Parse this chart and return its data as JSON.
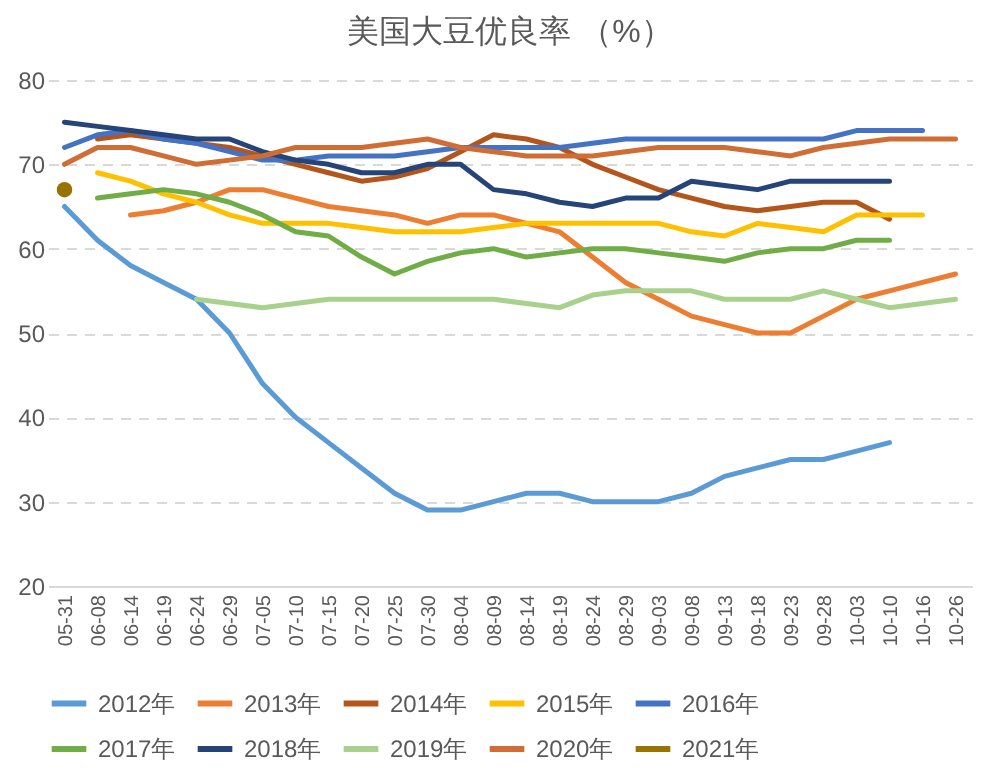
{
  "chart_data": {
    "type": "line",
    "title": "美国大豆优良率 （%）",
    "categories": [
      "05-31",
      "06-08",
      "06-14",
      "06-19",
      "06-24",
      "06-29",
      "07-05",
      "07-10",
      "07-15",
      "07-20",
      "07-25",
      "07-30",
      "08-04",
      "08-09",
      "08-14",
      "08-19",
      "08-24",
      "08-29",
      "09-03",
      "09-08",
      "09-13",
      "09-18",
      "09-23",
      "09-28",
      "10-03",
      "10-10",
      "10-16",
      "10-26"
    ],
    "ylim": [
      20,
      80
    ],
    "yticks": [
      20,
      30,
      40,
      50,
      60,
      70,
      80
    ],
    "grid": "y",
    "legend": "bottom",
    "marker": "none",
    "series": [
      {
        "name": "2012年",
        "color": "#5b9bd5",
        "values": [
          65,
          61,
          58,
          56,
          54,
          50,
          44,
          40,
          37,
          34,
          31,
          29,
          29,
          30,
          31,
          31,
          30,
          30,
          30,
          31,
          33,
          34,
          35,
          35,
          36,
          37,
          null,
          null
        ]
      },
      {
        "name": "2013年",
        "color": "#ed7d31",
        "values": [
          null,
          null,
          64,
          64.5,
          65.5,
          67,
          67,
          66,
          65,
          64.5,
          64,
          63,
          64,
          64,
          63,
          62,
          59,
          56,
          54,
          52,
          51,
          50,
          50,
          52,
          54,
          55,
          56,
          57
        ]
      },
      {
        "name": "2014年",
        "color": "#b4561c",
        "values": [
          null,
          73,
          73.5,
          73,
          72.5,
          72,
          71,
          70,
          69,
          68,
          68.5,
          69.5,
          71.5,
          73.5,
          73,
          72,
          70,
          68.5,
          67,
          66,
          65,
          64.5,
          65,
          65.5,
          65.5,
          63.5,
          null,
          null
        ]
      },
      {
        "name": "2015年",
        "color": "#ffc000",
        "values": [
          null,
          69,
          68,
          66.5,
          65.5,
          64,
          63,
          63,
          63,
          62.5,
          62,
          62,
          62,
          62.5,
          63,
          63,
          63,
          63,
          63,
          62,
          61.5,
          63,
          62.5,
          62,
          64,
          64,
          64,
          null
        ]
      },
      {
        "name": "2016年",
        "color": "#4472c4",
        "values": [
          72,
          73.5,
          74,
          73,
          72.5,
          71.5,
          70.5,
          70.5,
          71,
          71,
          71,
          71.5,
          72,
          72,
          72,
          72,
          72.5,
          73,
          73,
          73,
          73,
          73,
          73,
          73,
          74,
          74,
          74,
          null
        ]
      },
      {
        "name": "2017年",
        "color": "#70ad47",
        "values": [
          null,
          66,
          66.5,
          67,
          66.5,
          65.5,
          64,
          62,
          61.5,
          59,
          57,
          58.5,
          59.5,
          60,
          59,
          59.5,
          60,
          60,
          59.5,
          59,
          58.5,
          59.5,
          60,
          60,
          61,
          61,
          null,
          null
        ]
      },
      {
        "name": "2018年",
        "color": "#264478",
        "values": [
          75,
          74.5,
          74,
          73.5,
          73,
          73,
          71.5,
          70.5,
          70,
          69,
          69,
          70,
          70,
          67,
          66.5,
          65.5,
          65,
          66,
          66,
          68,
          67.5,
          67,
          68,
          68,
          68,
          68,
          null,
          null
        ]
      },
      {
        "name": "2019年",
        "color": "#a9d18e",
        "values": [
          null,
          null,
          null,
          null,
          54,
          53.5,
          53,
          53.5,
          54,
          54,
          54,
          54,
          54,
          54,
          53.5,
          53,
          54.5,
          55,
          55,
          55,
          54,
          54,
          54,
          55,
          54,
          53,
          53.5,
          54
        ]
      },
      {
        "name": "2020年",
        "color": "#cf6d35",
        "values": [
          70,
          72,
          72,
          71,
          70,
          70.5,
          71,
          72,
          72,
          72,
          72.5,
          73,
          72,
          71.5,
          71,
          71,
          71,
          71.5,
          72,
          72,
          72,
          71.5,
          71,
          72,
          72.5,
          73,
          73,
          73
        ]
      },
      {
        "name": "2021年",
        "color": "#997300",
        "marker": "circle",
        "values": [
          67,
          null,
          null,
          null,
          null,
          null,
          null,
          null,
          null,
          null,
          null,
          null,
          null,
          null,
          null,
          null,
          null,
          null,
          null,
          null,
          null,
          null,
          null,
          null,
          null,
          null,
          null,
          null
        ]
      }
    ]
  }
}
